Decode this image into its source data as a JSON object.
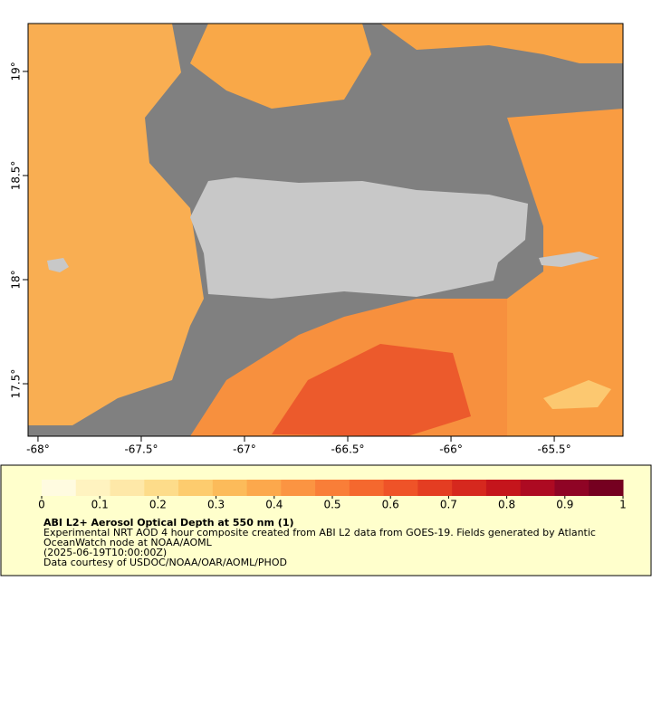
{
  "chart_data": {
    "type": "map",
    "xlim": [
      -68.048,
      -65.167
    ],
    "ylim": [
      17.248,
      19.23
    ],
    "xticks": [
      {
        "value": -68,
        "label": "-68°"
      },
      {
        "value": -67.5,
        "label": "-67.5°"
      },
      {
        "value": -67,
        "label": "-67°"
      },
      {
        "value": -66.5,
        "label": "-66.5°"
      },
      {
        "value": -66,
        "label": "-66°"
      },
      {
        "value": -65.5,
        "label": "-65.5°"
      }
    ],
    "yticks": [
      {
        "value": 17.5,
        "label": "17.5°"
      },
      {
        "value": 18,
        "label": "18°"
      },
      {
        "value": 18.5,
        "label": "18.5°"
      },
      {
        "value": 19,
        "label": "19°"
      }
    ],
    "colorbar": {
      "lim": [
        0,
        1
      ],
      "ticks": [
        0,
        0.1,
        0.2,
        0.3,
        0.4,
        0.5,
        0.6,
        0.7,
        0.8,
        0.9,
        1
      ],
      "colors": [
        "#fffbe0",
        "#fff3c0",
        "#fee8a8",
        "#fddc8a",
        "#fdcc6e",
        "#fcbb5a",
        "#fca84c",
        "#fb9442",
        "#f97e38",
        "#f5682e",
        "#ef5328",
        "#e43d22",
        "#d6281e",
        "#c5151c",
        "#ad0a22",
        "#8f0425",
        "#750020"
      ]
    },
    "title": "ABI L2+ Aerosol Optical Depth at 550 nm (1)",
    "description": [
      "Experimental NRT AOD 4 hour composite created from ABI L2 data from GOES-19. Fields generated by Atlantic",
      "OceanWatch node at NOAA/AOML",
      "(2025-06-19T10:00:00Z)",
      "Data courtesy of USDOC/NOAA/OAR/AOML/PHOD"
    ]
  }
}
